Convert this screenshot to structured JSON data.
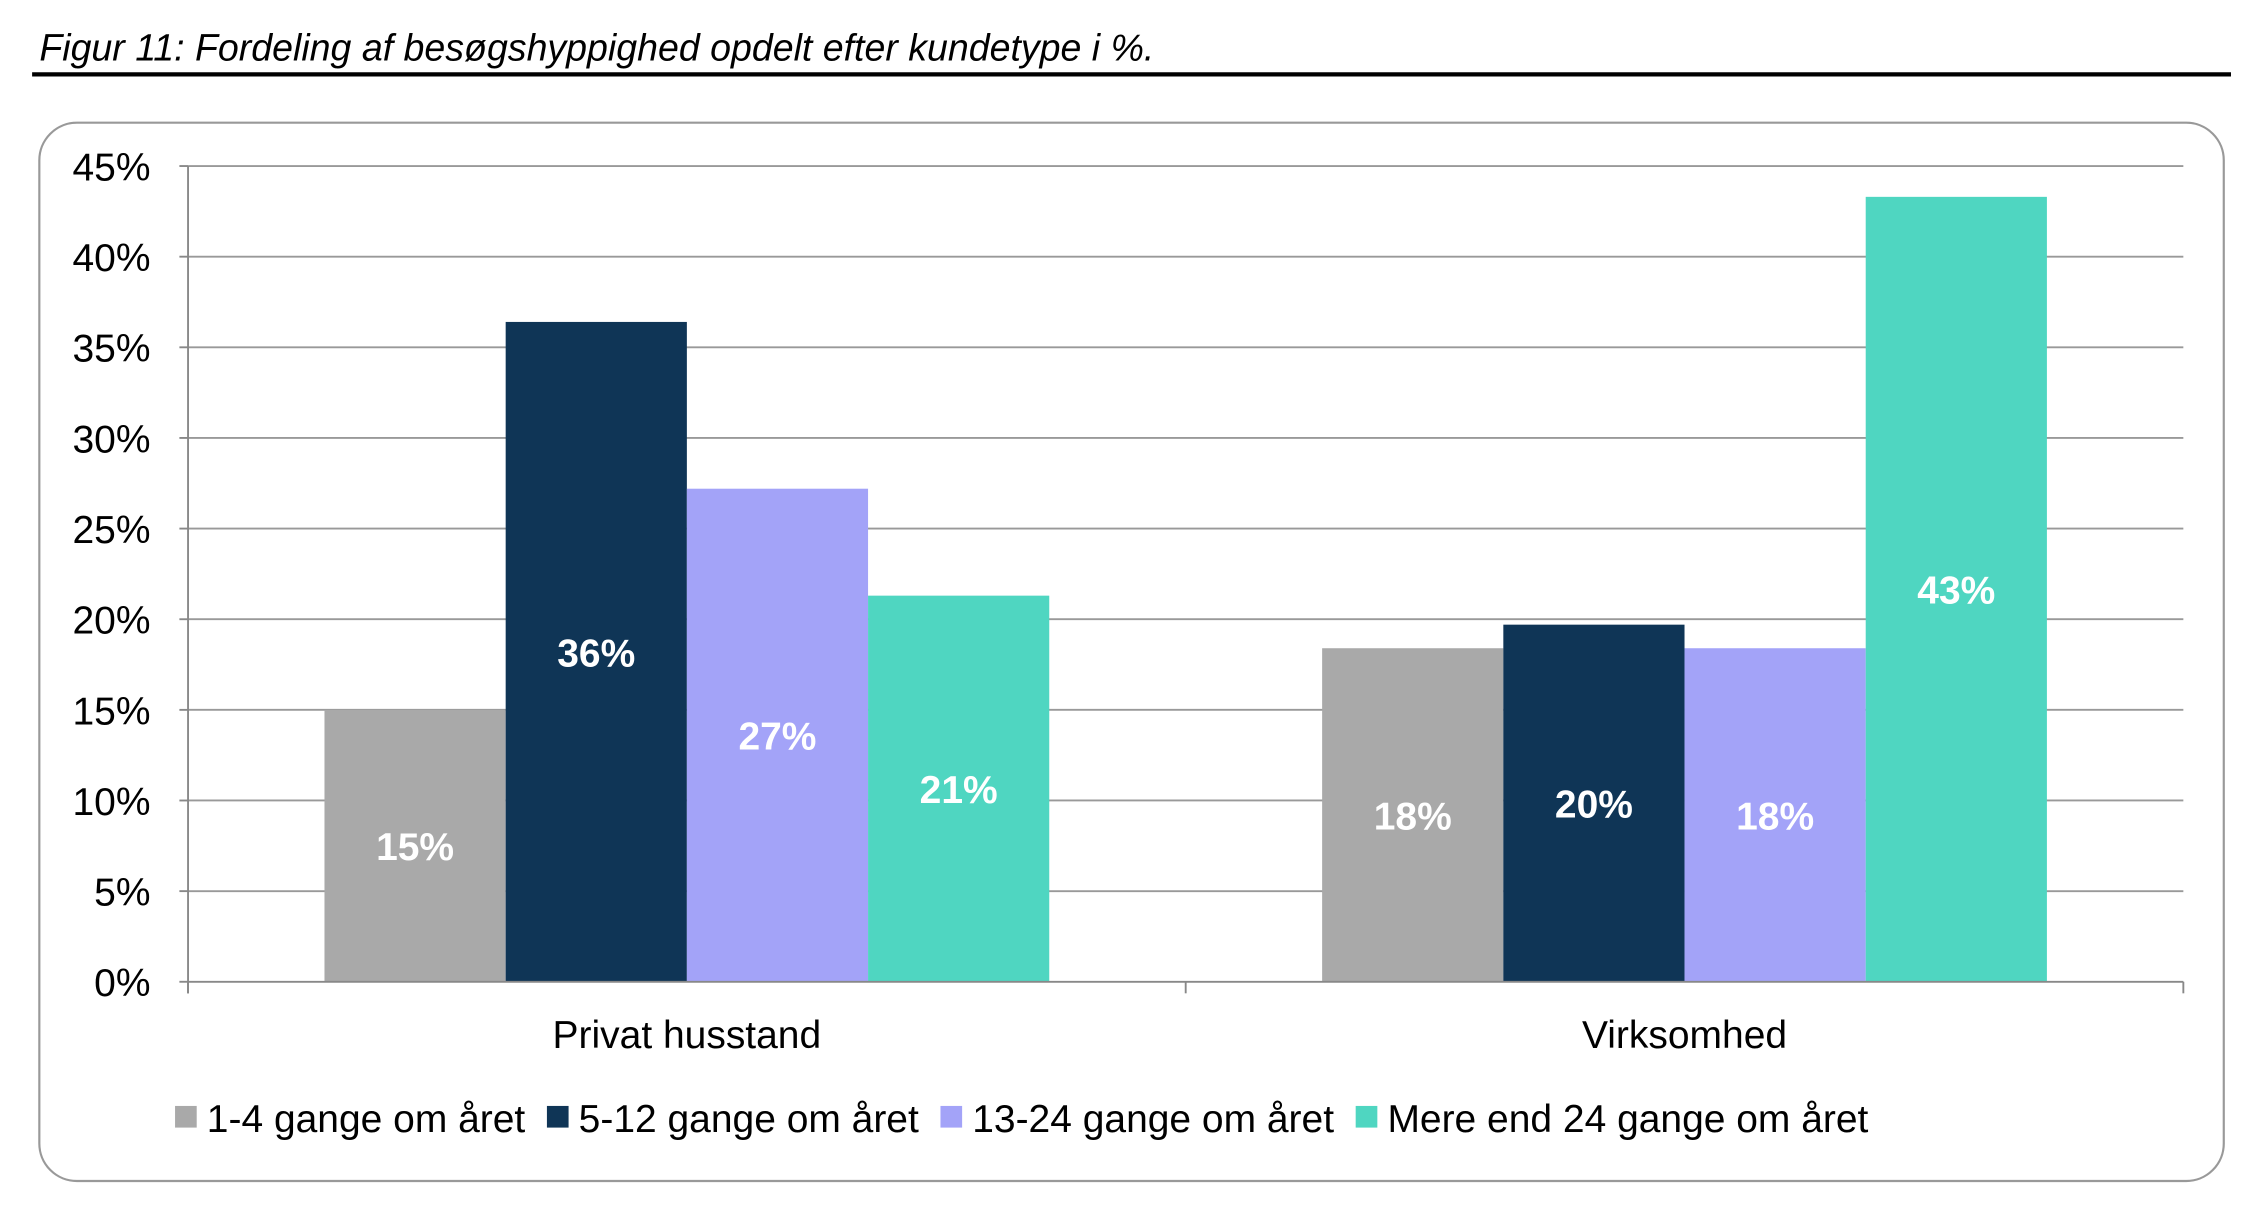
{
  "caption": "Figur 11: Fordeling af besøgshyppighed opdelt efter kundetype i %.",
  "chart_data": {
    "type": "bar",
    "title": "",
    "xlabel": "",
    "ylabel": "",
    "ylim": [
      0,
      45
    ],
    "yticks": [
      "0%",
      "5%",
      "10%",
      "15%",
      "20%",
      "25%",
      "30%",
      "35%",
      "40%",
      "45%"
    ],
    "grid": true,
    "legend_position": "bottom",
    "categories": [
      "Privat husstand",
      "Virksomhed"
    ],
    "series": [
      {
        "name": "1-4 gange om året",
        "color": "#a9a9a9",
        "values": [
          15.0,
          18.4
        ],
        "labels": [
          "15%",
          "18%"
        ]
      },
      {
        "name": "5-12 gange om året",
        "color": "#0f3556",
        "values": [
          36.4,
          19.7
        ],
        "labels": [
          "36%",
          "20%"
        ]
      },
      {
        "name": "13-24 gange om året",
        "color": "#a3a3f8",
        "values": [
          27.2,
          18.4
        ],
        "labels": [
          "27%",
          "18%"
        ]
      },
      {
        "name": "Mere end 24 gange om året",
        "color": "#4fd6c1",
        "values": [
          21.3,
          43.3
        ],
        "labels": [
          "21%",
          "43%"
        ]
      }
    ]
  }
}
